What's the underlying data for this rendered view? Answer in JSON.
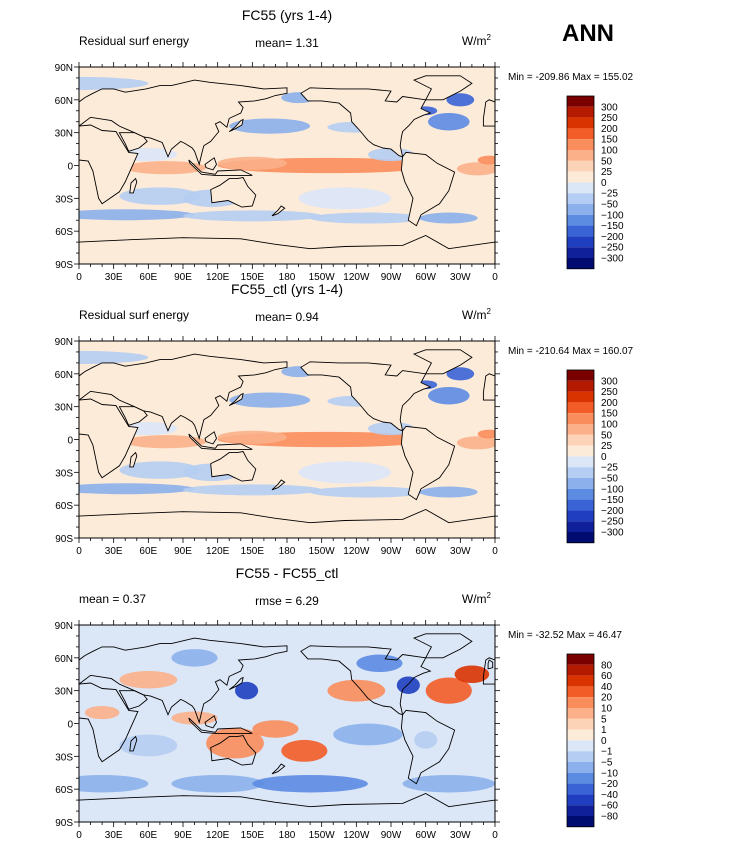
{
  "season_label": "ANN",
  "chart_data": [
    {
      "type": "heatmap",
      "title": "FC55 (yrs 1-4)",
      "left_label": "Residual surf energy",
      "center_label": "mean=   1.31",
      "units_base": "W/m",
      "units_exp": "2",
      "minmax": "Min = -209.86 Max = 155.02",
      "colorbar_levels": [
        "300",
        "250",
        "200",
        "150",
        "100",
        "50",
        "25",
        "0",
        "-25",
        "-50",
        "-100",
        "-150",
        "-200",
        "-250",
        "-300"
      ],
      "colorbar_colors": [
        "#7a0000",
        "#b31a00",
        "#d93300",
        "#f25c26",
        "#f98d5b",
        "#fbb08a",
        "#fcd3b6",
        "#fdebd9",
        "#dbe6f7",
        "#b5cdf2",
        "#8bb0eb",
        "#5c8be2",
        "#3a64d6",
        "#1f3fc0",
        "#10209a",
        "#000c70"
      ],
      "x_ticks": [
        "0",
        "30E",
        "60E",
        "90E",
        "120E",
        "150E",
        "180",
        "150W",
        "120W",
        "90W",
        "60W",
        "30W",
        "0"
      ],
      "y_ticks": [
        "90N",
        "60N",
        "30N",
        "0",
        "30S",
        "60S",
        "90S"
      ],
      "mean": 1.31,
      "min": -209.86,
      "max": 155.02
    },
    {
      "type": "heatmap",
      "title": "FC55_ctl (yrs 1-4)",
      "left_label": "Residual surf energy",
      "center_label": "mean=   0.94",
      "units_base": "W/m",
      "units_exp": "2",
      "minmax": "Min = -210.64 Max = 160.07",
      "colorbar_levels": [
        "300",
        "250",
        "200",
        "150",
        "100",
        "50",
        "25",
        "0",
        "-25",
        "-50",
        "-100",
        "-150",
        "-200",
        "-250",
        "-300"
      ],
      "colorbar_colors": [
        "#7a0000",
        "#b31a00",
        "#d93300",
        "#f25c26",
        "#f98d5b",
        "#fbb08a",
        "#fcd3b6",
        "#fdebd9",
        "#dbe6f7",
        "#b5cdf2",
        "#8bb0eb",
        "#5c8be2",
        "#3a64d6",
        "#1f3fc0",
        "#10209a",
        "#000c70"
      ],
      "x_ticks": [
        "0",
        "30E",
        "60E",
        "90E",
        "120E",
        "150E",
        "180",
        "150W",
        "120W",
        "90W",
        "60W",
        "30W",
        "0"
      ],
      "y_ticks": [
        "90N",
        "60N",
        "30N",
        "0",
        "30S",
        "60S",
        "90S"
      ],
      "mean": 0.94,
      "min": -210.64,
      "max": 160.07
    },
    {
      "type": "heatmap",
      "title": "FC55 - FC55_ctl",
      "left_label": "mean =    0.37",
      "center_label": "rmse =    6.29",
      "units_base": "W/m",
      "units_exp": "2",
      "minmax": "Min = -32.52 Max =   46.47",
      "colorbar_levels": [
        "80",
        "60",
        "40",
        "20",
        "10",
        "5",
        "1",
        "0",
        "-1",
        "-5",
        "-10",
        "-20",
        "-40",
        "-60",
        "-80"
      ],
      "colorbar_colors": [
        "#7a0000",
        "#b31a00",
        "#d93300",
        "#f25c26",
        "#f98d5b",
        "#fbb08a",
        "#fcd3b6",
        "#fdebd9",
        "#dbe6f7",
        "#b5cdf2",
        "#8bb0eb",
        "#5c8be2",
        "#3a64d6",
        "#1f3fc0",
        "#10209a",
        "#000c70"
      ],
      "x_ticks": [
        "0",
        "30E",
        "60E",
        "90E",
        "120E",
        "150E",
        "180",
        "150W",
        "120W",
        "90W",
        "60W",
        "30W",
        "0"
      ],
      "y_ticks": [
        "90N",
        "60N",
        "30N",
        "0",
        "30S",
        "60S",
        "90S"
      ],
      "mean": 0.37,
      "rmse": 6.29,
      "min": -32.52,
      "max": 46.47
    }
  ]
}
